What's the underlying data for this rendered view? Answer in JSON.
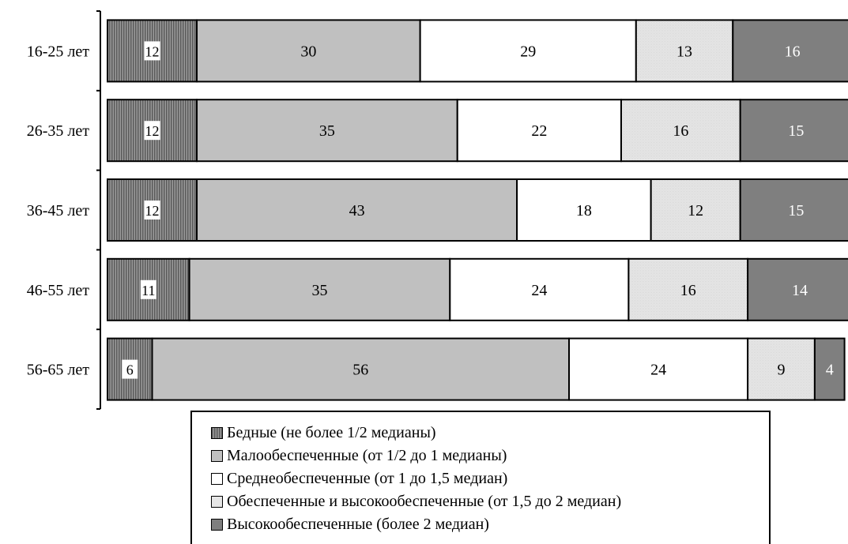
{
  "chart_data": {
    "type": "bar",
    "orientation": "horizontal",
    "stacked": true,
    "percent": true,
    "categories": [
      "16-25 лет",
      "26-35 лет",
      "36-45 лет",
      "46-55 лет",
      "56-65 лет"
    ],
    "series": [
      {
        "name": "Бедные (не более 1/2 медианы)",
        "values": [
          12,
          12,
          12,
          11,
          6
        ],
        "color": "#7a7a7a",
        "pattern": "vertical-stripes"
      },
      {
        "name": "Малообеспеченные (от 1/2 до 1 медианы)",
        "values": [
          30,
          35,
          43,
          35,
          56
        ],
        "color": "#c0c0c0",
        "pattern": "solid"
      },
      {
        "name": "Среднеобеспеченные (от 1 до 1,5 медиан)",
        "values": [
          29,
          22,
          18,
          24,
          24
        ],
        "color": "#ffffff",
        "pattern": "solid"
      },
      {
        "name": "Обеспеченные и высокообеспеченные (от 1,5 до 2 медиан)",
        "values": [
          13,
          16,
          12,
          16,
          9
        ],
        "color": "#e6e6e6",
        "pattern": "dotted"
      },
      {
        "name": "Высокообеспеченные (более 2 медиан)",
        "values": [
          16,
          15,
          15,
          14,
          4
        ],
        "color": "#7f7f7f",
        "pattern": "solid"
      }
    ],
    "xlim": [
      0,
      100
    ],
    "legend_position": "bottom"
  },
  "legend_icon": "square-swatch"
}
